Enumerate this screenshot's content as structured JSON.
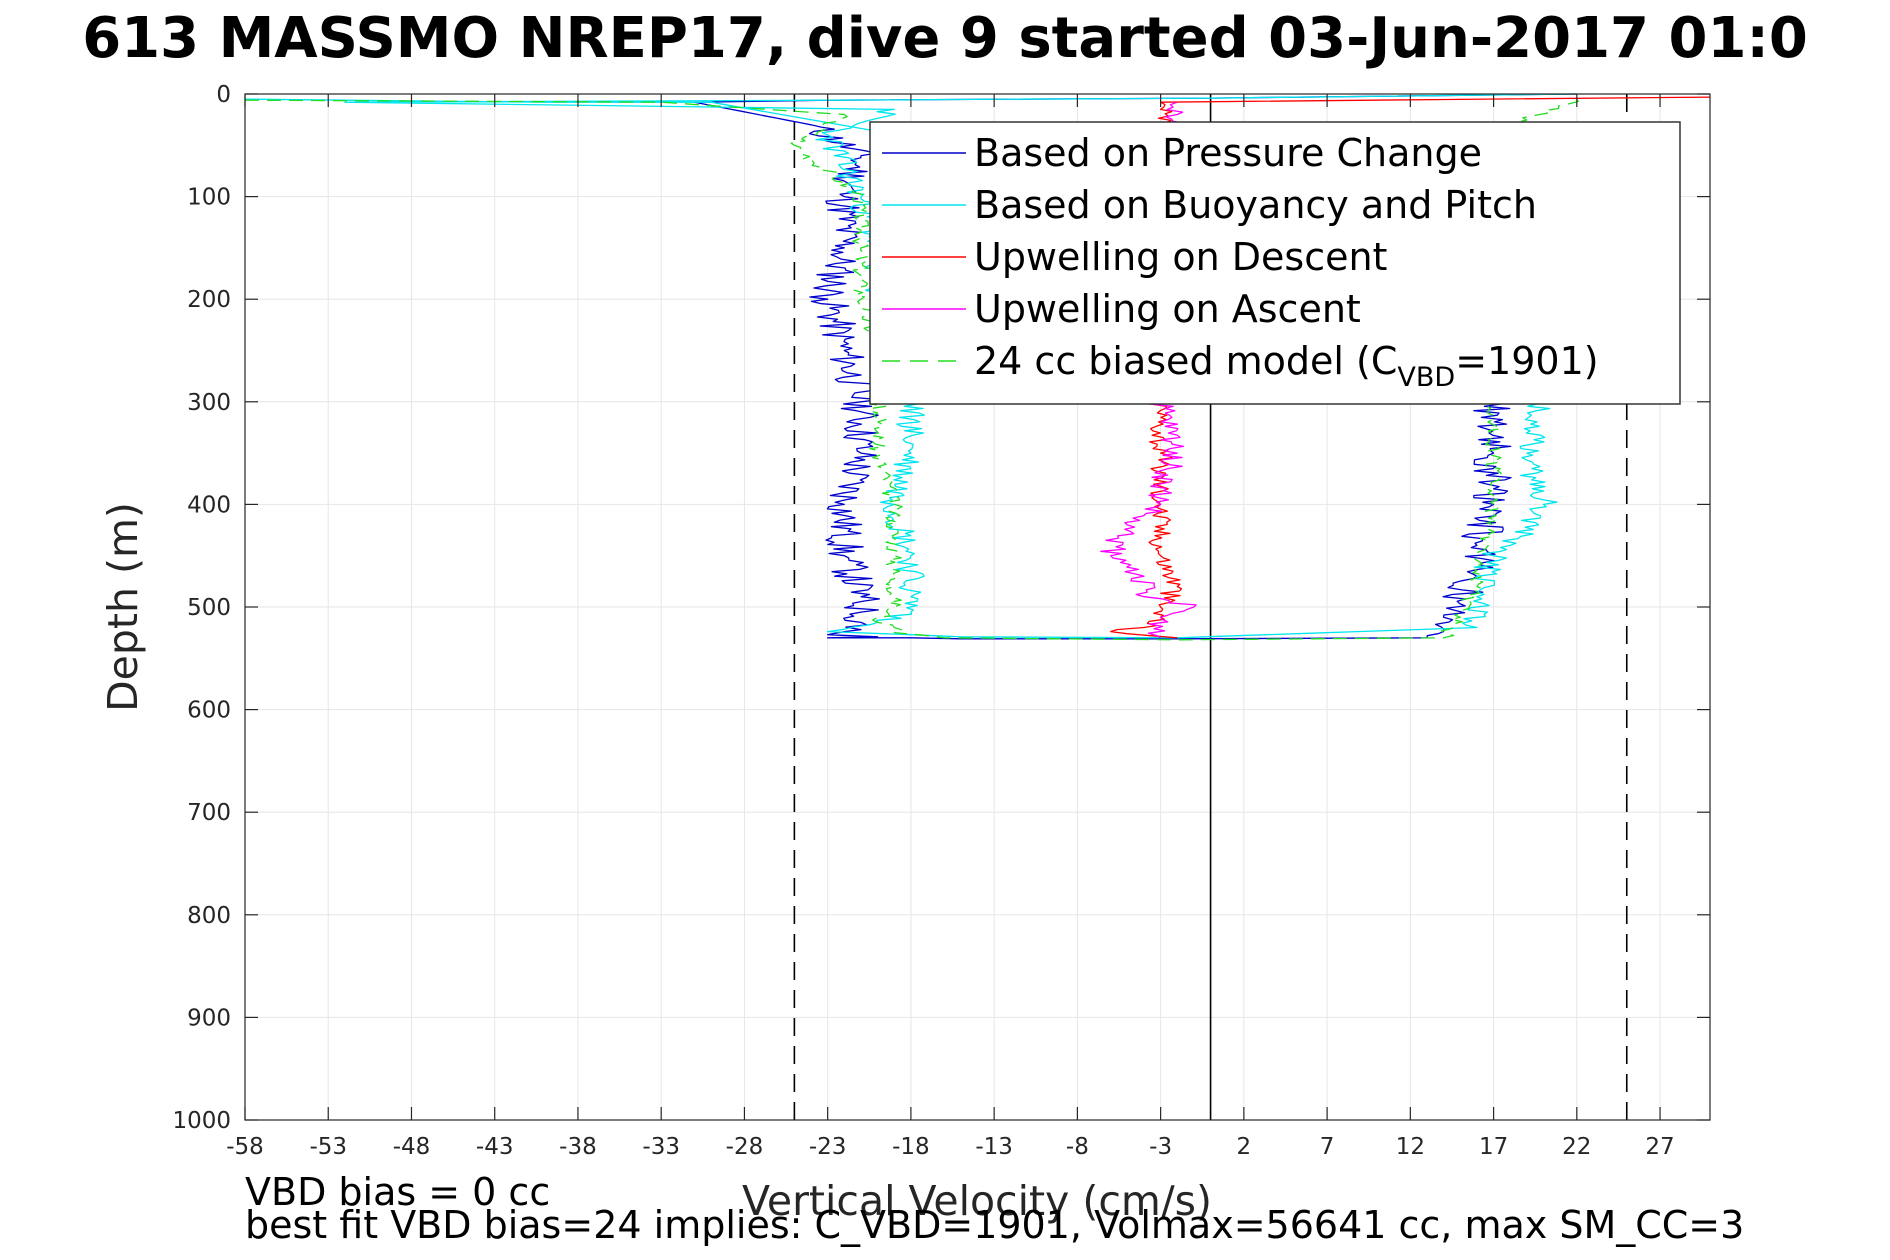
{
  "page": {
    "title": "613 MASSMO NREP17, dive 9 started 03-Jun-2017 01:0",
    "footer_line1": "VBD bias = 0 cc",
    "footer_line2": "best fit VBD bias=24 implies: C_VBD=1901, Volmax=56641 cc, max SM_CC=3"
  },
  "chart_data": {
    "type": "line",
    "xlabel": "Vertical Velocity (cm/s)",
    "ylabel": "Depth (m)",
    "xlim": [
      -58,
      30
    ],
    "ylim": [
      0,
      1000
    ],
    "y_reversed": true,
    "grid": true,
    "xticks": [
      -58,
      -53,
      -48,
      -43,
      -38,
      -33,
      -28,
      -23,
      -18,
      -13,
      -8,
      -3,
      2,
      7,
      12,
      17,
      22,
      27
    ],
    "yticks": [
      0,
      100,
      200,
      300,
      400,
      500,
      600,
      700,
      800,
      900,
      1000
    ],
    "reference_lines": [
      {
        "x": 0,
        "style": "solid",
        "color": "#000000"
      },
      {
        "x": -25,
        "style": "dashed",
        "color": "#000000"
      },
      {
        "x": 25,
        "style": "dashed",
        "color": "#000000"
      }
    ],
    "legend": {
      "placement": "top-right",
      "items": [
        {
          "text": "Based on Pressure Change",
          "color": "#0000cc",
          "dashed": false
        },
        {
          "text": "Based on Buoyancy and Pitch",
          "color": "#00e5ee",
          "dashed": false
        },
        {
          "text": "Upwelling on Descent",
          "color": "#ff0000",
          "dashed": false
        },
        {
          "text": "Upwelling on Ascent",
          "color": "#ff00ff",
          "dashed": false
        },
        {
          "text": "24 cc biased model (C",
          "sub": "VBD",
          "tail": "=1901)",
          "color": "#22dd22",
          "dashed": true
        }
      ]
    },
    "series": [
      {
        "name": "Based on Pressure Change",
        "color": "#0000cc",
        "dashed": false,
        "noise": 1.2,
        "seed": 11,
        "x": [
          22,
          0,
          -23,
          -31,
          -24,
          -21,
          -22,
          -22,
          -23,
          -22,
          -21,
          -21,
          -22,
          -22,
          -21,
          -21,
          -21,
          -21,
          -22,
          -23,
          -20,
          -23,
          -23,
          -18,
          -15,
          -2,
          13,
          14,
          14,
          16,
          16,
          17,
          17,
          17,
          19,
          19,
          19
        ],
        "y": [
          0,
          4,
          6,
          8,
          30,
          60,
          100,
          150,
          200,
          250,
          300,
          350,
          400,
          450,
          490,
          505,
          515,
          522,
          524,
          527,
          529,
          530,
          530,
          530,
          531,
          531,
          530,
          524,
          510,
          470,
          440,
          400,
          350,
          300,
          250,
          200,
          150
        ]
      },
      {
        "name": "Based on Buoyancy and Pitch",
        "color": "#00e5ee",
        "dashed": false,
        "noise": 0.9,
        "seed": 23,
        "x": [
          22,
          0,
          -23,
          -52,
          -19,
          -23,
          -21,
          -20,
          -20,
          -19,
          -18,
          -18,
          -19,
          -18,
          -18,
          -18,
          -20,
          -23,
          -18,
          -15,
          -2,
          16,
          16,
          17,
          18,
          20,
          19,
          20,
          20,
          20
        ],
        "y": [
          0,
          4,
          6,
          8,
          15,
          40,
          100,
          150,
          200,
          250,
          300,
          350,
          400,
          450,
          490,
          505,
          515,
          524,
          527,
          529,
          530,
          520,
          490,
          450,
          440,
          400,
          350,
          300,
          200,
          150
        ],
        "end_cap_x": [
          -30,
          -40,
          -52,
          -58
        ],
        "end_cap_y": [
          8,
          8,
          6,
          5
        ]
      },
      {
        "name": "Upwelling on Descent",
        "color": "#ff0000",
        "dashed": false,
        "noise": 0.7,
        "seed": 37,
        "x": [
          30,
          -3,
          -3,
          -3,
          -3,
          -3,
          -3,
          -3,
          -2,
          -3,
          -3,
          -4,
          -6,
          -2
        ],
        "y": [
          3,
          8,
          15,
          30,
          300,
          350,
          400,
          450,
          480,
          500,
          510,
          520,
          524,
          530
        ]
      },
      {
        "name": "Upwelling on Ascent",
        "color": "#ff00ff",
        "dashed": false,
        "noise": 0.8,
        "seed": 51,
        "x": [
          -2,
          -2,
          -3,
          -2,
          -3,
          -3,
          -5,
          -6,
          -4,
          -4,
          -1,
          -3,
          -3
        ],
        "y": [
          8,
          20,
          300,
          350,
          380,
          400,
          420,
          450,
          470,
          490,
          500,
          510,
          530
        ]
      },
      {
        "name": "24 cc biased model (CVBD=1901)",
        "color": "#22dd22",
        "dashed": true,
        "noise": 0.5,
        "seed": 67,
        "x": [
          -58,
          -33,
          -22,
          -25,
          -21,
          -21,
          -21,
          -20,
          -20,
          -20,
          -19,
          -19,
          -19,
          -19,
          -20,
          -19,
          -19,
          -16,
          -2,
          14,
          15,
          16,
          16,
          17,
          17,
          17,
          17,
          17,
          17,
          18,
          22
        ],
        "y": [
          6,
          8,
          20,
          50,
          100,
          150,
          200,
          250,
          300,
          350,
          400,
          450,
          480,
          500,
          515,
          520,
          525,
          530,
          532,
          530,
          510,
          480,
          460,
          420,
          400,
          350,
          300,
          200,
          100,
          30,
          5
        ]
      }
    ]
  }
}
